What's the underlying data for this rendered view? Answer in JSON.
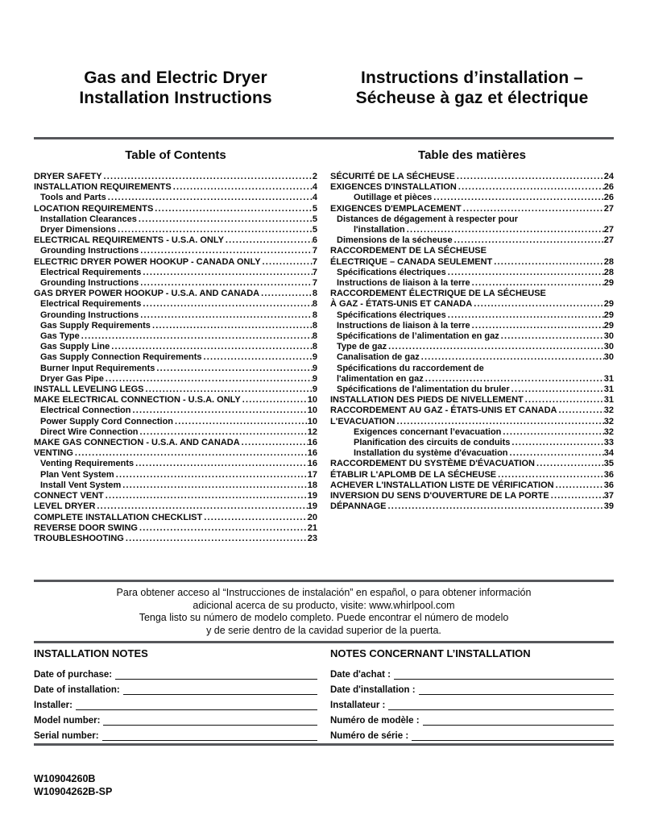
{
  "header": {
    "title_en_line1": "Gas and Electric Dryer",
    "title_en_line2": "Installation Instructions",
    "title_fr_line1": "Instructions d’installation –",
    "title_fr_line2": "Sécheuse à gaz et électrique"
  },
  "toc_en": {
    "heading": "Table of Contents",
    "entries": [
      {
        "t": "DRYER SAFETY",
        "p": "2",
        "i": 0
      },
      {
        "t": "INSTALLATION REQUIREMENTS",
        "p": "4",
        "i": 0
      },
      {
        "t": "Tools and Parts",
        "p": "4",
        "i": 1
      },
      {
        "t": "LOCATION REQUIREMENTS",
        "p": "5",
        "i": 0
      },
      {
        "t": "Installation Clearances",
        "p": "5",
        "i": 1
      },
      {
        "t": "Dryer Dimensions",
        "p": "5",
        "i": 1
      },
      {
        "t": "ELECTRICAL REQUIREMENTS - U.S.A. ONLY",
        "p": "6",
        "i": 0
      },
      {
        "t": "Grounding Instructions",
        "p": "7",
        "i": 1
      },
      {
        "t": "ELECTRIC DRYER POWER HOOKUP - CANADA ONLY",
        "p": "7",
        "i": 0
      },
      {
        "t": "Electrical Requirements",
        "p": "7",
        "i": 1
      },
      {
        "t": "Grounding Instructions",
        "p": "7",
        "i": 1
      },
      {
        "t": "GAS DRYER POWER HOOKUP - U.S.A. AND CANADA",
        "p": "8",
        "i": 0
      },
      {
        "t": "Electrical Requirements",
        "p": "8",
        "i": 1
      },
      {
        "t": "Grounding Instructions",
        "p": "8",
        "i": 1
      },
      {
        "t": "Gas Supply Requirements",
        "p": "8",
        "i": 1
      },
      {
        "t": "Gas Type",
        "p": "8",
        "i": 1
      },
      {
        "t": "Gas Supply Line",
        "p": "8",
        "i": 1
      },
      {
        "t": "Gas Supply Connection Requirements",
        "p": "9",
        "i": 1
      },
      {
        "t": "Burner Input Requirements",
        "p": "9",
        "i": 1
      },
      {
        "t": "Dryer Gas Pipe",
        "p": "9",
        "i": 1
      },
      {
        "t": "INSTALL LEVELING LEGS",
        "p": "9",
        "i": 0
      },
      {
        "t": "MAKE ELECTRICAL CONNECTION - U.S.A. ONLY",
        "p": "10",
        "i": 0
      },
      {
        "t": "Electrical Connection",
        "p": "10",
        "i": 1
      },
      {
        "t": "Power Supply Cord Connection",
        "p": "10",
        "i": 1
      },
      {
        "t": "Direct Wire Connection",
        "p": "12",
        "i": 1
      },
      {
        "t": "MAKE GAS CONNECTION - U.S.A. AND CANADA",
        "p": "16",
        "i": 0
      },
      {
        "t": "VENTING",
        "p": "16",
        "i": 0
      },
      {
        "t": "Venting Requirements",
        "p": "16",
        "i": 1
      },
      {
        "t": "Plan Vent System",
        "p": "17",
        "i": 1
      },
      {
        "t": "Install Vent System",
        "p": "18",
        "i": 1
      },
      {
        "t": "CONNECT VENT",
        "p": "19",
        "i": 0
      },
      {
        "t": "LEVEL DRYER",
        "p": "19",
        "i": 0
      },
      {
        "t": "COMPLETE INSTALLATION CHECKLIST",
        "p": "20",
        "i": 0
      },
      {
        "t": "REVERSE DOOR SWING",
        "p": "21",
        "i": 0
      },
      {
        "t": "TROUBLESHOOTING",
        "p": "23",
        "i": 0
      }
    ]
  },
  "toc_fr": {
    "heading": "Table des matières",
    "entries": [
      {
        "t": "SÉCURITÉ DE LA SÉCHEUSE",
        "p": "24",
        "i": 0
      },
      {
        "t": "EXIGENCES D'INSTALLATION",
        "p": "26",
        "i": 0
      },
      {
        "t": "Outillage et pièces",
        "p": "26",
        "i": 2
      },
      {
        "t": "EXIGENCES D'EMPLACEMENT",
        "p": "27",
        "i": 0
      },
      {
        "t": "Distances de dégagement à respecter pour",
        "p": "",
        "i": 1
      },
      {
        "t": "l'installation",
        "p": "27",
        "i": 2
      },
      {
        "t": "Dimensions de la sécheuse",
        "p": "27",
        "i": 1
      },
      {
        "t": "RACCORDEMENT DE LA SÉCHEUSE",
        "p": "",
        "i": 0
      },
      {
        "t": "ÉLECTRIQUE – CANADA SEULEMENT",
        "p": "28",
        "i": 0
      },
      {
        "t": "Spécifications électriques",
        "p": "28",
        "i": 1
      },
      {
        "t": "Instructions de liaison à la terre",
        "p": "29",
        "i": 1
      },
      {
        "t": "RACCORDEMENT ÉLECTRIQUE DE LA SÉCHEUSE",
        "p": "",
        "i": 0
      },
      {
        "t": "À GAZ - ÉTATS-UNIS ET CANADA",
        "p": "29",
        "i": 0
      },
      {
        "t": "Spécifications électriques",
        "p": "29",
        "i": 1
      },
      {
        "t": "Instructions de liaison à la terre",
        "p": "29",
        "i": 1
      },
      {
        "t": "Spécifications de l’alimentation en gaz",
        "p": "30",
        "i": 1
      },
      {
        "t": "Type de gaz",
        "p": "30",
        "i": 1
      },
      {
        "t": "Canalisation de gaz",
        "p": "30",
        "i": 1
      },
      {
        "t": "Spécifications du raccordement de",
        "p": "",
        "i": 1
      },
      {
        "t": "l'alimentation en gaz",
        "p": "31",
        "i": 1
      },
      {
        "t": "Spécifications de l'alimentation du bruler",
        "p": "31",
        "i": 1
      },
      {
        "t": "INSTALLATION DES PIEDS DE NIVELLEMENT",
        "p": "31",
        "i": 0
      },
      {
        "t": "RACCORDEMENT AU GAZ - ÉTATS-UNIS ET CANADA",
        "p": "32",
        "i": 0
      },
      {
        "t": "L'EVACUATION",
        "p": "32",
        "i": 0
      },
      {
        "t": "Exigences concernant l’evacuation",
        "p": "32",
        "i": 2
      },
      {
        "t": "Planification des circuits de conduits",
        "p": "33",
        "i": 2
      },
      {
        "t": "Installation du système d'évacuation",
        "p": "34",
        "i": 2
      },
      {
        "t": "RACCORDEMENT DU SYSTÈME D'ÉVACUATION",
        "p": "35",
        "i": 0
      },
      {
        "t": "ÉTABLIR L'APLOMB DE LA SÉCHEUSE",
        "p": "36",
        "i": 0
      },
      {
        "t": "ACHEVER L'INSTALLATION LISTE DE VÉRIFICATION",
        "p": "36",
        "i": 0
      },
      {
        "t": "INVERSION DU SENS D'OUVERTURE DE LA PORTE",
        "p": "37",
        "i": 0
      },
      {
        "t": "DÉPANNAGE",
        "p": "39",
        "i": 0
      }
    ]
  },
  "notice_es": {
    "lines": [
      {
        "t": "Para obtener acceso al “Instrucciones de instalación” en español, o para obtener información"
      },
      {
        "t": "adicional acerca de su producto, visite: www.whirlpool.com"
      },
      {
        "t": "Tenga listo su número de modelo completo. Puede encontrar el número de modelo"
      },
      {
        "t": "y de serie dentro de la cavidad superior de la puerta."
      }
    ]
  },
  "notes_en": {
    "heading": "INSTALLATION NOTES",
    "fields": [
      {
        "label": "Date of purchase:"
      },
      {
        "label": "Date of installation:"
      },
      {
        "label": "Installer:"
      },
      {
        "label": "Model number:"
      },
      {
        "label": "Serial number:"
      }
    ]
  },
  "notes_fr": {
    "heading": "NOTES CONCERNANT L’INSTALLATION",
    "fields": [
      {
        "label": "Date d'achat :"
      },
      {
        "label": "Date d'installation :"
      },
      {
        "label": "Installateur :"
      },
      {
        "label": "Numéro de modèle :"
      },
      {
        "label": "Numéro de série :"
      }
    ]
  },
  "footer": {
    "code1": "W10904260B",
    "code2": "W10904262B-SP"
  },
  "colors": {
    "rule": "#56575b",
    "text": "#0a0a0a",
    "background": "#ffffff"
  }
}
